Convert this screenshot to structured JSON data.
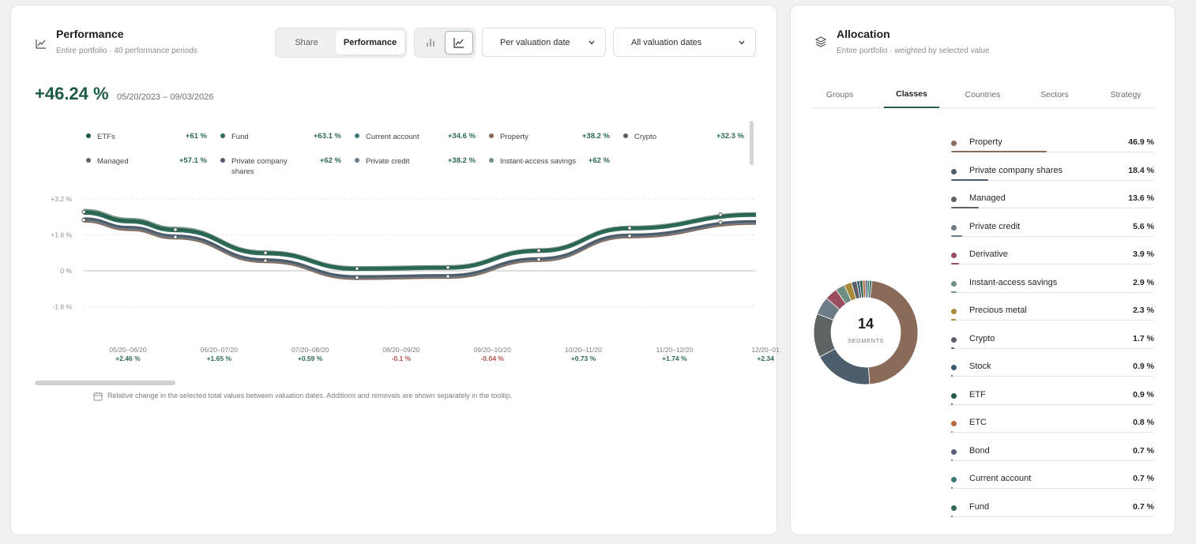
{
  "performance": {
    "title": "Performance",
    "subtitle": "Entire portfolio · 40 performance periods",
    "share_label": "Share",
    "performance_label": "Performance",
    "valuation_dropdown": "Per valuation date",
    "dates_dropdown": "All valuation dates",
    "total_pct": "+46.24 %",
    "date_range": "05/20/2023 – 09/03/2026",
    "footnote": "Relative change in the selected total values between valuation dates. Additions and removals are shown separately in the tooltip.",
    "legend": [
      {
        "label": "ETFs",
        "value": "+61 %",
        "color": "#1f5c43"
      },
      {
        "label": "Fund",
        "value": "+63.1 %",
        "color": "#2f6b5a"
      },
      {
        "label": "Current account",
        "value": "+34.6 %",
        "color": "#3b7a78"
      },
      {
        "label": "Property",
        "value": "+38.2 %",
        "color": "#8a6a58"
      },
      {
        "label": "Crypto",
        "value": "+32.3 %",
        "color": "#5c5f6b"
      },
      {
        "label": "Managed",
        "value": "+57.1 %",
        "color": "#5d6463"
      },
      {
        "label": "Private company shares",
        "value": "+62 %",
        "color": "#4e5d6b"
      },
      {
        "label": "Private credit",
        "value": "+38.2 %",
        "color": "#6e7c88"
      },
      {
        "label": "Instant-access savings",
        "value": "+62 %",
        "color": "#6f8f80"
      }
    ]
  },
  "chart_data": {
    "type": "line",
    "yticks": [
      "+3.2 %",
      "+1.6 %",
      "0 %",
      "-1.6 %"
    ],
    "ytick_values": [
      3.2,
      1.6,
      0,
      -1.6
    ],
    "categories": [
      "05/20–06/20",
      "06/20–07/20",
      "07/20–08/20",
      "08/20–09/20",
      "09/20–10/20",
      "10/20–11/20",
      "11/20–12/20",
      "12/20–01"
    ],
    "period_changes": [
      "+2.46 %",
      "+1.65 %",
      "+0.59 %",
      "-0.1 %",
      "-0.04 %",
      "+0.73 %",
      "+1.74 %",
      "+2.34"
    ],
    "series": [
      {
        "color": "#6f8f80",
        "values": [
          2.7,
          1.9,
          0.85,
          0.15,
          0.2,
          0.95,
          1.95,
          2.55
        ]
      },
      {
        "color": "#1f5c43",
        "values": [
          2.62,
          1.83,
          0.8,
          0.1,
          0.15,
          0.9,
          1.9,
          2.5
        ]
      },
      {
        "color": "#2f6b5a",
        "values": [
          2.55,
          1.77,
          0.74,
          0.05,
          0.1,
          0.85,
          1.85,
          2.45
        ]
      },
      {
        "color": "#8a6a58",
        "values": [
          2.2,
          1.45,
          0.4,
          -0.35,
          -0.3,
          0.45,
          1.5,
          2.1
        ]
      },
      {
        "color": "#6e7c88",
        "values": [
          2.26,
          1.5,
          0.45,
          -0.3,
          -0.25,
          0.5,
          1.55,
          2.15
        ]
      },
      {
        "color": "#4e5d6b",
        "values": [
          2.32,
          1.56,
          0.5,
          -0.25,
          -0.2,
          0.55,
          1.6,
          2.2
        ]
      }
    ]
  },
  "allocation": {
    "title": "Allocation",
    "subtitle": "Entire portfolio · weighted by selected value",
    "tabs": [
      "Groups",
      "Classes",
      "Countries",
      "Sectors",
      "Strategy"
    ],
    "active_tab": "Classes",
    "segments_count": "14",
    "segments_label": "SEGMENTS",
    "items": [
      {
        "label": "Property",
        "value": "46.9 %",
        "pct": 46.9,
        "color": "#8a6a58"
      },
      {
        "label": "Private company shares",
        "value": "18.4 %",
        "pct": 18.4,
        "color": "#4e5d6b"
      },
      {
        "label": "Managed",
        "value": "13.6 %",
        "pct": 13.6,
        "color": "#5d6463"
      },
      {
        "label": "Private credit",
        "value": "5.6 %",
        "pct": 5.6,
        "color": "#6e7c88"
      },
      {
        "label": "Derivative",
        "value": "3.9 %",
        "pct": 3.9,
        "color": "#9a4f5e"
      },
      {
        "label": "Instant-access savings",
        "value": "2.9 %",
        "pct": 2.9,
        "color": "#6f8f80"
      },
      {
        "label": "Precious metal",
        "value": "2.3 %",
        "pct": 2.3,
        "color": "#a88a3c"
      },
      {
        "label": "Crypto",
        "value": "1.7 %",
        "pct": 1.7,
        "color": "#5c5f6b"
      },
      {
        "label": "Stock",
        "value": "0.9 %",
        "pct": 0.9,
        "color": "#3d5a6e"
      },
      {
        "label": "ETF",
        "value": "0.9 %",
        "pct": 0.9,
        "color": "#1f5c43"
      },
      {
        "label": "ETC",
        "value": "0.8 %",
        "pct": 0.8,
        "color": "#b86a3f"
      },
      {
        "label": "Bond",
        "value": "0.7 %",
        "pct": 0.7,
        "color": "#5a5d78"
      },
      {
        "label": "Current account",
        "value": "0.7 %",
        "pct": 0.7,
        "color": "#3b7a78"
      },
      {
        "label": "Fund",
        "value": "0.7 %",
        "pct": 0.7,
        "color": "#2f6b5a"
      }
    ]
  }
}
